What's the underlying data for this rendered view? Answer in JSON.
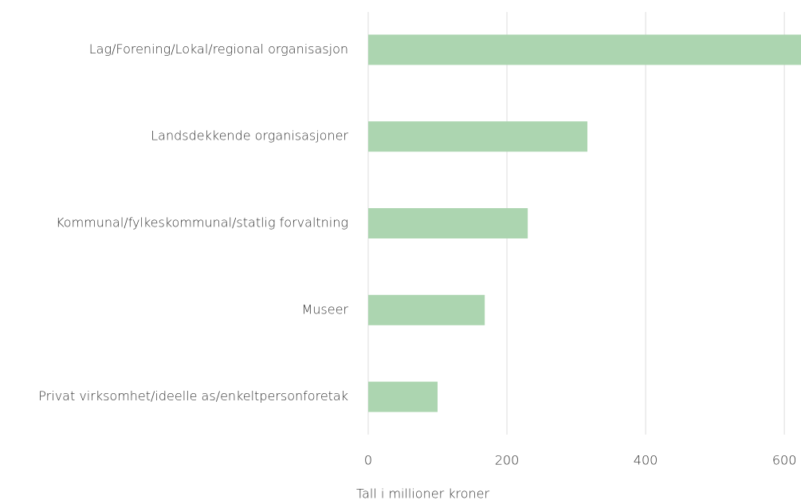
{
  "chart_data": {
    "type": "hbar",
    "categories": [
      "Lag/Forening/Lokal/regional organisasjon",
      "Landsdekkende organisasjoner",
      "Kommunal/fylkeskommunal/statlig forvaltning",
      "Museer",
      "Privat virksomhet/ideelle as/enkeltpersonforetak"
    ],
    "values": [
      624,
      316,
      230,
      168,
      100
    ],
    "color": "#acd5b0",
    "xlabel": "Tall i millioner kroner",
    "xlim": [
      0,
      624
    ],
    "xticks": [
      0,
      200,
      400,
      600
    ],
    "grid": true
  }
}
